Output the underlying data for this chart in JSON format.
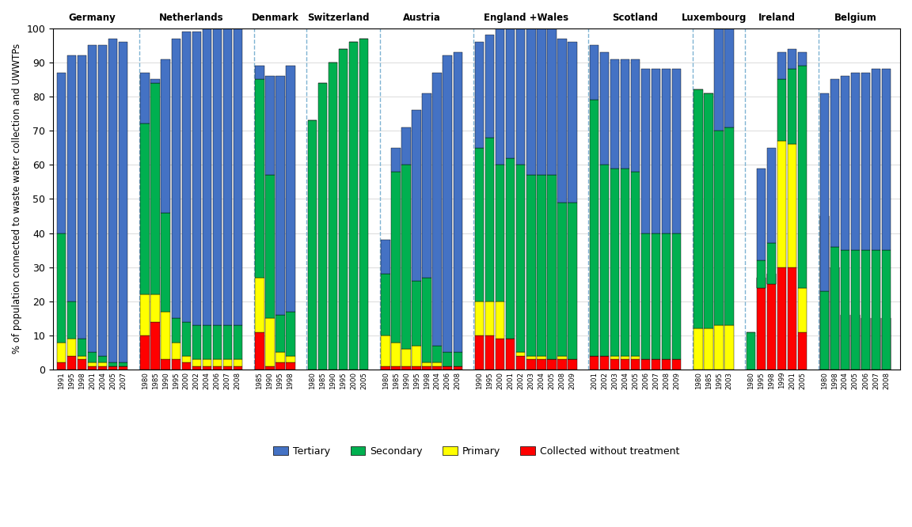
{
  "ylabel": "% of population connected to waste water collection and UWWTPs",
  "colors": {
    "tertiary": "#4472C4",
    "secondary": "#00B050",
    "primary": "#FFFF00",
    "collected": "#FF0000"
  },
  "countries": [
    {
      "name": "Germany",
      "years": [
        "1991",
        "1995",
        "1998",
        "2001",
        "2004",
        "2005",
        "2007"
      ],
      "tertiary": [
        87,
        92,
        92,
        95,
        95,
        97,
        96
      ],
      "secondary": [
        40,
        20,
        9,
        5,
        4,
        2,
        2
      ],
      "primary": [
        8,
        9,
        4,
        2,
        2,
        1,
        1
      ],
      "collected": [
        2,
        4,
        3,
        1,
        1,
        1,
        1
      ]
    },
    {
      "name": "Netherlands",
      "years": [
        "1980",
        "1985",
        "1990",
        "1995",
        "2000",
        "2002",
        "2004",
        "2006",
        "2007",
        "2008"
      ],
      "tertiary": [
        87,
        85,
        91,
        97,
        99,
        99,
        100,
        100,
        100,
        100
      ],
      "secondary": [
        72,
        84,
        46,
        15,
        14,
        13,
        13,
        13,
        13,
        13
      ],
      "primary": [
        22,
        22,
        17,
        8,
        4,
        3,
        3,
        3,
        3,
        3
      ],
      "collected": [
        10,
        14,
        3,
        3,
        2,
        1,
        1,
        1,
        1,
        1
      ]
    },
    {
      "name": "Denmark",
      "years": [
        "1985",
        "1990",
        "1995",
        "1998"
      ],
      "tertiary": [
        89,
        86,
        86,
        89
      ],
      "secondary": [
        85,
        57,
        16,
        17
      ],
      "primary": [
        27,
        15,
        5,
        4
      ],
      "collected": [
        11,
        1,
        2,
        2
      ]
    },
    {
      "name": "Switzerland",
      "years": [
        "1980",
        "1985",
        "1990",
        "1995",
        "2000",
        "2005"
      ],
      "tertiary": [
        73,
        84,
        90,
        94,
        96,
        97
      ],
      "secondary": [
        73,
        84,
        90,
        94,
        96,
        97
      ],
      "primary": [
        0,
        0,
        0,
        0,
        0,
        0
      ],
      "collected": [
        0,
        0,
        0,
        0,
        0,
        0
      ]
    },
    {
      "name": "Austria",
      "years": [
        "1980",
        "1985",
        "1990",
        "1995",
        "1998",
        "2004",
        "2006",
        "2008"
      ],
      "tertiary": [
        38,
        65,
        71,
        76,
        81,
        87,
        92,
        93
      ],
      "secondary": [
        28,
        58,
        60,
        26,
        27,
        7,
        5,
        5
      ],
      "primary": [
        10,
        8,
        6,
        7,
        2,
        2,
        1,
        1
      ],
      "collected": [
        1,
        1,
        1,
        1,
        1,
        1,
        1,
        1
      ]
    },
    {
      "name": "England +Wales",
      "years": [
        "1990",
        "1995",
        "2000",
        "2001",
        "2002",
        "2003",
        "2004",
        "2005",
        "2008",
        "2009"
      ],
      "tertiary": [
        96,
        98,
        100,
        101,
        101,
        101,
        101,
        101,
        97,
        96
      ],
      "secondary": [
        65,
        68,
        60,
        62,
        60,
        57,
        57,
        57,
        49,
        49
      ],
      "primary": [
        20,
        20,
        20,
        9,
        5,
        4,
        4,
        3,
        4,
        3
      ],
      "collected": [
        10,
        10,
        9,
        9,
        4,
        3,
        3,
        3,
        3,
        3
      ]
    },
    {
      "name": "Scotland",
      "years": [
        "2001",
        "2002",
        "2003",
        "2004",
        "2005",
        "2006",
        "2007",
        "2008",
        "2009"
      ],
      "tertiary": [
        95,
        93,
        91,
        91,
        91,
        88,
        88,
        88,
        88
      ],
      "secondary": [
        79,
        60,
        59,
        59,
        58,
        40,
        40,
        40,
        40
      ],
      "primary": [
        4,
        4,
        4,
        4,
        4,
        3,
        3,
        3,
        3
      ],
      "collected": [
        4,
        4,
        3,
        3,
        3,
        3,
        3,
        3,
        3
      ]
    },
    {
      "name": "Luxembourg",
      "years": [
        "1980",
        "1985",
        "1995",
        "2003"
      ],
      "tertiary": [
        82,
        81,
        100,
        100
      ],
      "secondary": [
        82,
        81,
        70,
        71
      ],
      "primary": [
        12,
        12,
        13,
        13
      ],
      "collected": [
        0,
        0,
        0,
        0
      ]
    },
    {
      "name": "Ireland",
      "years": [
        "1980",
        "1995",
        "1998",
        "1999",
        "2001",
        "2005"
      ],
      "tertiary": [
        11,
        59,
        65,
        93,
        94,
        93
      ],
      "secondary": [
        11,
        32,
        37,
        85,
        88,
        89
      ],
      "primary": [
        0,
        24,
        25,
        67,
        66,
        24
      ],
      "collected": [
        0,
        27,
        28,
        30,
        30,
        11
      ]
    },
    {
      "name": "Belgium",
      "years": [
        "1980",
        "1998",
        "2004",
        "2005",
        "2006",
        "2007",
        "2008"
      ],
      "tertiary": [
        81,
        85,
        86,
        87,
        87,
        88,
        88
      ],
      "secondary": [
        23,
        36,
        35,
        35,
        35,
        35,
        35
      ],
      "primary": [
        0,
        0,
        0,
        0,
        0,
        0,
        0
      ],
      "collected": [
        45,
        30,
        16,
        16,
        15,
        15,
        15
      ]
    }
  ]
}
